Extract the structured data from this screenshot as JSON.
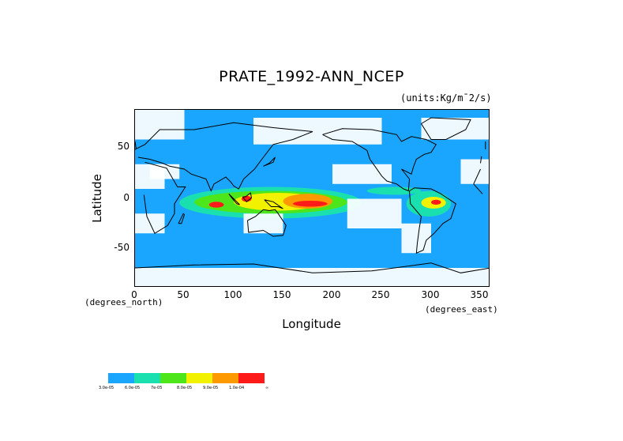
{
  "title": "PRATE_1992-ANN_NCEP",
  "units": "(units:Kg/m¯2/s)",
  "axes": {
    "ylabel": "Latitude",
    "xlabel": "Longitude",
    "y_unit": "(degrees_north)",
    "x_unit": "(degrees_east)",
    "yticks": [
      "50",
      "0",
      "-50"
    ],
    "xticks": [
      "0",
      "50",
      "100",
      "150",
      "200",
      "250",
      "300",
      "350"
    ],
    "xlim": [
      0,
      360
    ],
    "ylim": [
      -90,
      90
    ]
  },
  "colorbar": {
    "colors": [
      "#1aa6ff",
      "#1ae0b0",
      "#4de61a",
      "#f2f200",
      "#ff9900",
      "#ff1a1a"
    ],
    "labels": [
      "3.0e-05",
      "6.0e-05",
      "7e-05",
      "8.0e-05",
      "9.0e-05",
      "1.0e-04",
      "∞"
    ]
  },
  "chart_data": {
    "type": "heatmap",
    "title": "PRATE_1992-ANN_NCEP",
    "xlabel": "Longitude",
    "ylabel": "Latitude",
    "xlim": [
      0,
      360
    ],
    "ylim": [
      -90,
      90
    ],
    "levels": [
      "3.0e-05",
      "6.0e-05",
      "7e-05",
      "8.0e-05",
      "9.0e-05",
      "1.0e-04"
    ],
    "regions": [
      {
        "level": 0,
        "lon": [
          0,
          360
        ],
        "lat": [
          -90,
          90
        ]
      },
      {
        "level": 1,
        "lon": [
          45,
          230
        ],
        "lat": [
          -20,
          12
        ]
      },
      {
        "level": 2,
        "lon": [
          60,
          215
        ],
        "lat": [
          -15,
          8
        ]
      },
      {
        "level": 3,
        "lon": [
          100,
          190
        ],
        "lat": [
          -12,
          6
        ]
      },
      {
        "level": 4,
        "lon": [
          150,
          200
        ],
        "lat": [
          -10,
          5
        ]
      },
      {
        "level": 5,
        "lon": [
          160,
          195
        ],
        "lat": [
          -8,
          -2
        ]
      },
      {
        "level": 1,
        "lon": [
          275,
          320
        ],
        "lat": [
          -18,
          8
        ]
      },
      {
        "level": 3,
        "lon": [
          290,
          315
        ],
        "lat": [
          -10,
          2
        ]
      },
      {
        "level": 5,
        "lon": [
          300,
          310
        ],
        "lat": [
          -6,
          -1
        ]
      },
      {
        "level": 1,
        "lon": [
          235,
          290
        ],
        "lat": [
          4,
          12
        ]
      },
      {
        "level": 5,
        "lon": [
          75,
          90
        ],
        "lat": [
          -9,
          -3
        ]
      },
      {
        "level": 5,
        "lon": [
          108,
          118
        ],
        "lat": [
          -3,
          3
        ]
      }
    ]
  }
}
